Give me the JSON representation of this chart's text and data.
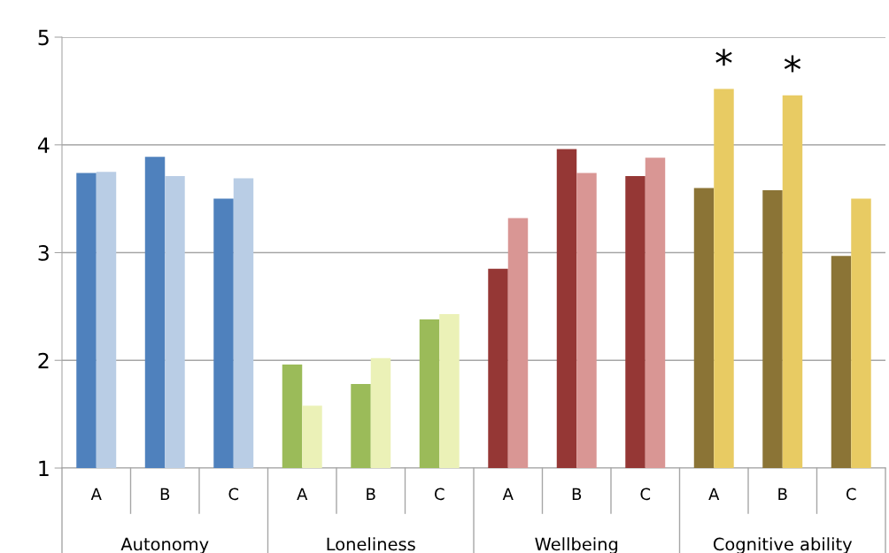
{
  "chart_data": {
    "type": "bar",
    "categories": [
      "A",
      "B",
      "C",
      "A",
      "B",
      "C",
      "A",
      "B",
      "C",
      "A",
      "B",
      "C"
    ],
    "series": [
      {
        "colors": [
          "#4f81bd",
          "#4f81bd",
          "#4f81bd",
          "#9bbb59",
          "#9bbb59",
          "#9bbb59",
          "#953735",
          "#953735",
          "#953735",
          "#8b7436",
          "#8b7436",
          "#8b7436"
        ],
        "values": [
          3.74,
          3.89,
          3.5,
          1.96,
          1.78,
          2.38,
          2.85,
          3.96,
          3.71,
          3.6,
          3.58,
          2.97
        ]
      },
      {
        "colors": [
          "#b9cde5",
          "#b9cde5",
          "#b9cde5",
          "#ebf1b7",
          "#ebf1b7",
          "#ebf1b7",
          "#d99694",
          "#d99694",
          "#d99694",
          "#e8cb63",
          "#e8cb63",
          "#e8cb63"
        ],
        "values": [
          3.75,
          3.71,
          3.69,
          1.58,
          2.02,
          2.43,
          3.32,
          3.74,
          3.88,
          4.52,
          4.46,
          3.5
        ],
        "value_labels": [
          null,
          null,
          null,
          null,
          null,
          null,
          null,
          null,
          null,
          "*",
          "*",
          null
        ]
      }
    ],
    "annotations": [
      "Autonomy",
      "Loneliness",
      "Wellbeing",
      "Cognitive ability"
    ],
    "ylim": [
      1,
      5
    ],
    "yticks": [
      1,
      2,
      3,
      4,
      5
    ],
    "grid": "y"
  }
}
